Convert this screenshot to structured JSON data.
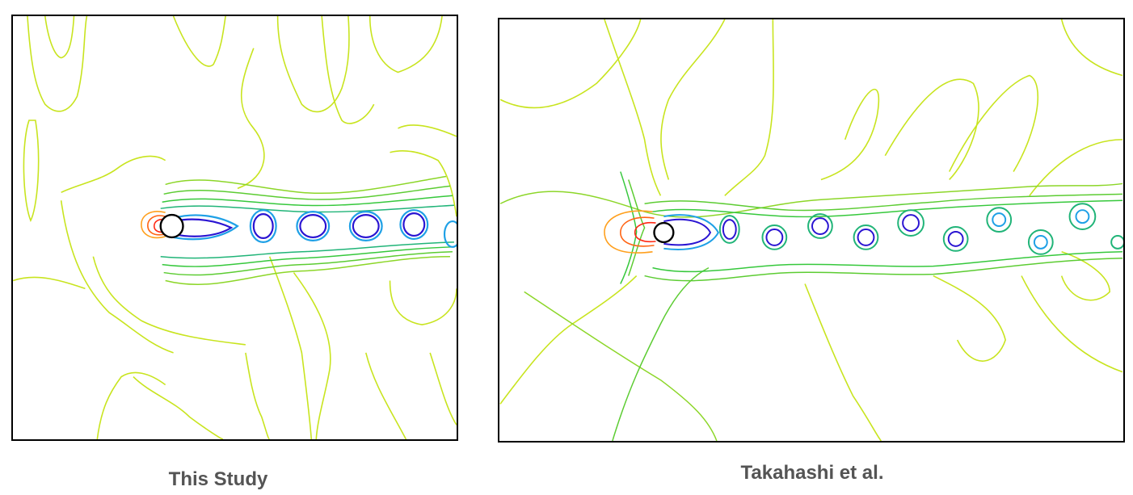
{
  "figure": {
    "left_caption": "This Study",
    "right_caption": "Takahashi et al."
  },
  "colors": {
    "far_field": "#c8e41e",
    "mid_field": "#36c83c",
    "near_wake": "#1ea0e6",
    "vortex_core": "#2a14d2",
    "stagnation_high": "#ff2814",
    "stagnation_mid": "#ffa01e",
    "cylinder_fill": "#ffffff",
    "cylinder_stroke": "#000000"
  }
}
